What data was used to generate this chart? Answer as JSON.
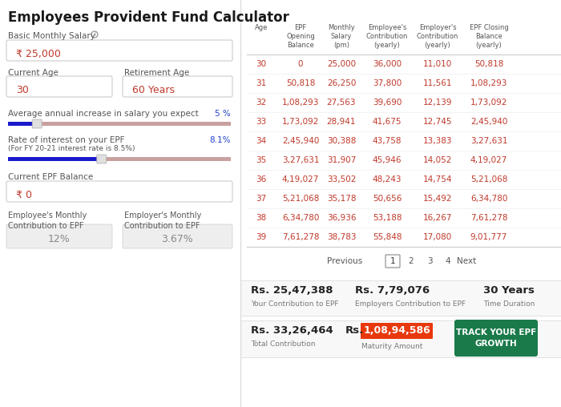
{
  "title": "Employees Provident Fund Calculator",
  "left_panel": {
    "basic_salary_label": "Basic Monthly Salary",
    "basic_salary_value": "₹ 25,000",
    "current_age_label": "Current Age",
    "current_age_value": "30",
    "retirement_age_label": "Retirement Age",
    "retirement_age_value": "60 Years",
    "salary_increase_label": "Average annual increase in salary you expect",
    "salary_increase_pct": "5 %",
    "salary_slider_fill": 0.13,
    "interest_label": "Rate of interest on your EPF",
    "interest_sublabel": "(For FY 20-21 interest rate is 8.5%)",
    "interest_pct": "8.1%",
    "interest_slider_fill": 0.42,
    "epf_balance_label": "Current EPF Balance",
    "epf_balance_value": "₹ 0",
    "emp_contribution_label": "Employee's Monthly\nContribution to EPF",
    "emp_contribution_value": "12%",
    "employer_contribution_label": "Employer's Monthly\nContribution to EPF",
    "employer_contribution_value": "3.67%"
  },
  "table_headers": [
    "Age",
    "EPF\nOpening\nBalance",
    "Monthly\nSalary\n(pm)",
    "Employee's\nContribution\n(yearly)",
    "Employer's\nContribution\n(yearly)",
    "EPF Closing\nBalance\n(yearly)"
  ],
  "table_data": [
    [
      "30",
      "0",
      "25,000",
      "36,000",
      "11,010",
      "50,818"
    ],
    [
      "31",
      "50,818",
      "26,250",
      "37,800",
      "11,561",
      "1,08,293"
    ],
    [
      "32",
      "1,08,293",
      "27,563",
      "39,690",
      "12,139",
      "1,73,092"
    ],
    [
      "33",
      "1,73,092",
      "28,941",
      "41,675",
      "12,745",
      "2,45,940"
    ],
    [
      "34",
      "2,45,940",
      "30,388",
      "43,758",
      "13,383",
      "3,27,631"
    ],
    [
      "35",
      "3,27,631",
      "31,907",
      "45,946",
      "14,052",
      "4,19,027"
    ],
    [
      "36",
      "4,19,027",
      "33,502",
      "48,243",
      "14,754",
      "5,21,068"
    ],
    [
      "37",
      "5,21,068",
      "35,178",
      "50,656",
      "15,492",
      "6,34,780"
    ],
    [
      "38",
      "6,34,780",
      "36,936",
      "53,188",
      "16,267",
      "7,61,278"
    ],
    [
      "39",
      "7,61,278",
      "38,783",
      "55,848",
      "17,080",
      "9,01,777"
    ]
  ],
  "pagination": [
    "Previous",
    "1",
    "2",
    "3",
    "4",
    "Next"
  ],
  "summary": {
    "emp_contrib_amount": "Rs. 25,47,388",
    "emp_contrib_label": "Your Contribution to EPF",
    "employer_contrib_amount": "Rs. 7,79,076",
    "employer_contrib_label": "Employers Contribution to EPF",
    "duration_amount": "30 Years",
    "duration_label": "Time Duration",
    "total_contrib_amount": "Rs. 33,26,464",
    "total_contrib_label": "Total Contribution",
    "maturity_prefix": "Rs.",
    "maturity_amount": "1,08,94,586",
    "maturity_label": "Maturity Amount",
    "track_btn": "TRACK YOUR EPF\nGROWTH"
  },
  "colors": {
    "background": "#ffffff",
    "title_color": "#1a1a1a",
    "label_color": "#555555",
    "value_color": "#c0392b",
    "box_border": "#cccccc",
    "table_text": "#c0392b",
    "slider_track": "#c9a0a0",
    "slider_fill": "#1a1acc",
    "summary_bg": "#f5f5f5",
    "maturity_bg": "#e8380d",
    "maturity_text": "#ffffff",
    "track_btn_bg": "#1a7a4a",
    "track_btn_text": "#ffffff"
  }
}
